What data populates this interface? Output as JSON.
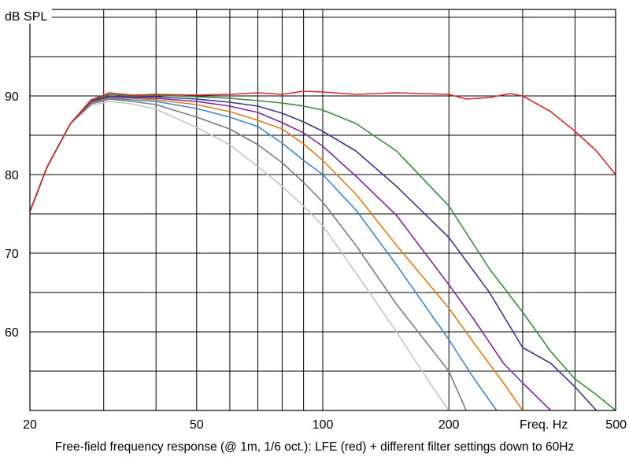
{
  "chart_data": {
    "type": "line",
    "title": "",
    "caption": "Free-field frequency response (@ 1m, 1/6 oct.): LFE (red) + different filter settings down to 60Hz",
    "ylabel": "dB SPL",
    "xlabel": "Freq. Hz",
    "x_scale": "log",
    "xlim": [
      20,
      500
    ],
    "ylim": [
      50,
      101
    ],
    "x_ticks": [
      20,
      50,
      100,
      200,
      500
    ],
    "x_tick_labels": [
      "20",
      "50",
      "100",
      "200",
      "500"
    ],
    "x_gridlines": [
      20,
      30,
      40,
      50,
      60,
      70,
      80,
      90,
      100,
      200,
      300,
      400,
      500
    ],
    "y_ticks": [
      60,
      70,
      80,
      90
    ],
    "y_tick_labels": [
      "60",
      "70",
      "80",
      "90"
    ],
    "y_gridlines": [
      55,
      60,
      65,
      70,
      75,
      80,
      85,
      90,
      95,
      100
    ],
    "grid": true,
    "legend": "none",
    "series": [
      {
        "color": "#d42a2a",
        "x": [
          20,
          22,
          25,
          28,
          31,
          35,
          40,
          50,
          60,
          70,
          80,
          90,
          100,
          120,
          150,
          200,
          220,
          250,
          280,
          300,
          350,
          400,
          450,
          500
        ],
        "y": [
          75.3,
          81,
          86.5,
          89.5,
          90.4,
          90.1,
          90.2,
          90.1,
          90.2,
          90.4,
          90.2,
          90.6,
          90.5,
          90.2,
          90.4,
          90.2,
          89.6,
          89.8,
          90.3,
          90.0,
          88.0,
          85.5,
          83.0,
          80.0
        ]
      },
      {
        "color": "#3a8a3a",
        "x": [
          20,
          22,
          25,
          28,
          31,
          35,
          40,
          50,
          60,
          70,
          80,
          90,
          100,
          120,
          150,
          200,
          250,
          300,
          350,
          400,
          450,
          500
        ],
        "y": [
          75.3,
          81,
          86.5,
          89.5,
          90.2,
          90.0,
          90.1,
          89.9,
          89.7,
          89.4,
          89.1,
          88.7,
          88.2,
          86.5,
          83.0,
          76.0,
          68.0,
          62.5,
          57.5,
          54.0,
          52.0,
          50.0
        ]
      },
      {
        "color": "#3b3a8c",
        "x": [
          20,
          22,
          25,
          28,
          31,
          35,
          40,
          50,
          60,
          70,
          80,
          90,
          100,
          120,
          150,
          200,
          250,
          300,
          350,
          400,
          450
        ],
        "y": [
          75.3,
          81,
          86.5,
          89.4,
          90.0,
          89.9,
          89.9,
          89.6,
          89.2,
          88.7,
          87.8,
          86.7,
          85.5,
          83.0,
          78.5,
          72.0,
          65.0,
          58.0,
          56.0,
          53.0,
          50.0
        ]
      },
      {
        "color": "#7a2a9c",
        "x": [
          20,
          22,
          25,
          28,
          31,
          35,
          40,
          50,
          60,
          70,
          80,
          90,
          100,
          120,
          150,
          200,
          230,
          270,
          300,
          350
        ],
        "y": [
          75.3,
          81,
          86.5,
          89.3,
          89.9,
          89.8,
          89.7,
          89.3,
          88.7,
          87.9,
          86.6,
          85.3,
          83.6,
          79.8,
          74.8,
          66.0,
          61.5,
          56.0,
          53.5,
          50.0
        ]
      },
      {
        "color": "#e07a1a",
        "x": [
          20,
          22,
          25,
          28,
          31,
          35,
          40,
          50,
          60,
          70,
          80,
          90,
          100,
          120,
          150,
          200,
          230,
          270,
          300
        ],
        "y": [
          75.3,
          81,
          86.5,
          89.2,
          89.8,
          89.7,
          89.5,
          88.9,
          88.0,
          86.9,
          85.8,
          83.9,
          81.8,
          77.5,
          71.0,
          63.0,
          58.5,
          53.5,
          50.0
        ]
      },
      {
        "color": "#3a88c8",
        "x": [
          20,
          22,
          25,
          28,
          31,
          35,
          40,
          50,
          60,
          70,
          80,
          90,
          100,
          120,
          150,
          200,
          230,
          260
        ],
        "y": [
          75.3,
          81,
          86.5,
          89.1,
          89.7,
          89.5,
          89.3,
          88.4,
          87.3,
          86.1,
          84.0,
          81.8,
          80.0,
          75.5,
          68.5,
          59.0,
          54.0,
          50.0
        ]
      },
      {
        "color": "#7c7c7c",
        "x": [
          20,
          22,
          25,
          28,
          31,
          35,
          40,
          50,
          60,
          70,
          80,
          90,
          100,
          120,
          150,
          200,
          220
        ],
        "y": [
          75.3,
          81,
          86.5,
          89.0,
          89.6,
          89.3,
          88.9,
          87.3,
          85.8,
          83.8,
          81.5,
          79.0,
          76.5,
          71.0,
          63.5,
          55.0,
          50.0
        ]
      },
      {
        "color": "#c4c4c4",
        "x": [
          20,
          22,
          25,
          28,
          31,
          35,
          40,
          50,
          60,
          70,
          80,
          90,
          100,
          120,
          150,
          180,
          200
        ],
        "y": [
          75.3,
          81,
          86.5,
          88.8,
          89.3,
          89.0,
          88.3,
          86.0,
          83.8,
          81.0,
          78.5,
          76.0,
          73.5,
          67.5,
          60.0,
          53.5,
          50.0
        ]
      }
    ]
  }
}
